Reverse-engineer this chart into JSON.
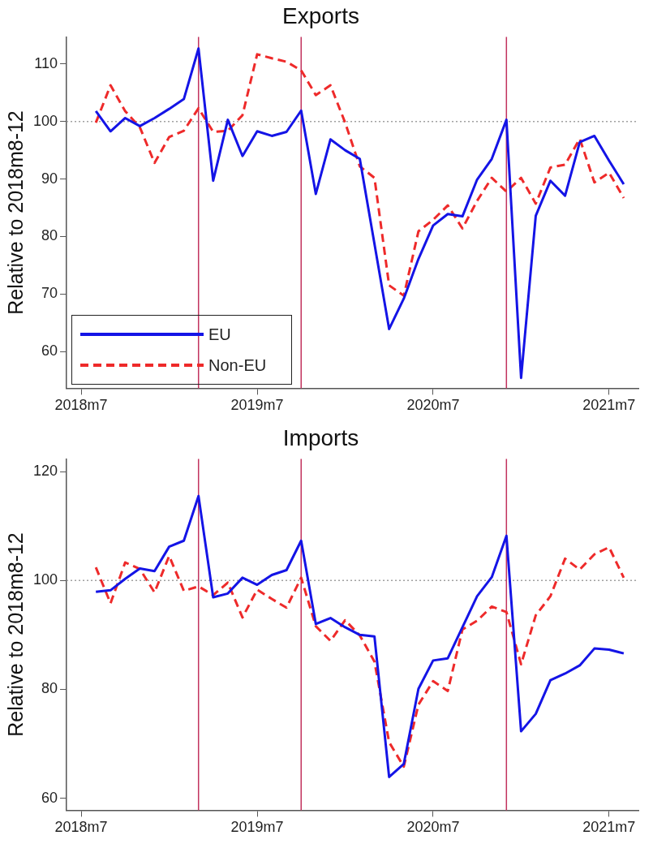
{
  "chart_data": [
    {
      "type": "line",
      "title": "Exports",
      "ylabel": "Relative to 2018m8-12",
      "x": [
        "2018-08",
        "2018-09",
        "2018-10",
        "2018-11",
        "2018-12",
        "2019-01",
        "2019-02",
        "2019-03",
        "2019-04",
        "2019-05",
        "2019-06",
        "2019-07",
        "2019-08",
        "2019-09",
        "2019-10",
        "2019-11",
        "2019-12",
        "2020-01",
        "2020-02",
        "2020-03",
        "2020-04",
        "2020-05",
        "2020-06",
        "2020-07",
        "2020-08",
        "2020-09",
        "2020-10",
        "2020-11",
        "2020-12",
        "2021-01",
        "2021-02",
        "2021-03",
        "2021-04",
        "2021-05",
        "2021-06",
        "2021-07",
        "2021-08"
      ],
      "series": [
        {
          "name": "EU",
          "color": "#1414e6",
          "line_style": "solid",
          "values": [
            101.8,
            98.3,
            100.6,
            99.2,
            100.6,
            102.2,
            103.9,
            112.7,
            89.7,
            100.3,
            94.0,
            98.3,
            97.5,
            98.2,
            101.9,
            87.4,
            96.9,
            95.0,
            93.5,
            78.7,
            63.9,
            69.2,
            76.1,
            81.9,
            83.9,
            83.5,
            89.9,
            93.5,
            100.3,
            55.4,
            83.6,
            89.7,
            87.1,
            96.4,
            97.5,
            93.2,
            89.1
          ]
        },
        {
          "name": "Non-EU",
          "color": "#ee2a2a",
          "line_style": "dashed",
          "values": [
            99.8,
            106.3,
            101.8,
            99.0,
            92.8,
            97.3,
            98.4,
            102.3,
            98.2,
            98.4,
            101.1,
            111.7,
            111.0,
            110.4,
            108.9,
            104.6,
            106.3,
            99.8,
            92.2,
            90.2,
            71.5,
            69.7,
            80.9,
            82.9,
            85.4,
            81.4,
            86.2,
            90.2,
            87.8,
            90.2,
            85.7,
            92.0,
            92.5,
            97.0,
            89.4,
            91.1,
            86.7
          ]
        }
      ],
      "xlim": [
        "2018-06",
        "2021-09"
      ],
      "xticks": [
        {
          "value": "2018-07",
          "label": "2018m7"
        },
        {
          "value": "2019-07",
          "label": "2019m7"
        },
        {
          "value": "2020-07",
          "label": "2020m7"
        },
        {
          "value": "2021-07",
          "label": "2021m7"
        }
      ],
      "ylim": [
        53.6,
        114.7
      ],
      "yticks": [
        60,
        70,
        80,
        90,
        100,
        110
      ],
      "ref_lines": [
        {
          "axis": "y",
          "value": 100,
          "color": "#a0a0a0",
          "line_style": "dotted"
        },
        {
          "axis": "x",
          "value": "2019-03",
          "color": "#c2335e"
        },
        {
          "axis": "x",
          "value": "2019-10",
          "color": "#c2335e"
        },
        {
          "axis": "x",
          "value": "2020-12",
          "color": "#c2335e"
        }
      ],
      "legend": "bottom left"
    },
    {
      "type": "line",
      "title": "Imports",
      "ylabel": "Relative to 2018m8-12",
      "x": [
        "2018-08",
        "2018-09",
        "2018-10",
        "2018-11",
        "2018-12",
        "2019-01",
        "2019-02",
        "2019-03",
        "2019-04",
        "2019-05",
        "2019-06",
        "2019-07",
        "2019-08",
        "2019-09",
        "2019-10",
        "2019-11",
        "2019-12",
        "2020-01",
        "2020-02",
        "2020-03",
        "2020-04",
        "2020-05",
        "2020-06",
        "2020-07",
        "2020-08",
        "2020-09",
        "2020-10",
        "2020-11",
        "2020-12",
        "2021-01",
        "2021-02",
        "2021-03",
        "2021-04",
        "2021-05",
        "2021-06",
        "2021-07",
        "2021-08"
      ],
      "series": [
        {
          "color": "#1414e6",
          "line_style": "solid",
          "values": [
            97.9,
            98.2,
            100.3,
            102.2,
            101.7,
            106.2,
            107.3,
            115.5,
            96.9,
            97.6,
            100.5,
            99.2,
            101.0,
            101.9,
            107.3,
            92.0,
            93.1,
            91.4,
            90.0,
            89.7,
            63.9,
            66.3,
            80.1,
            85.3,
            85.7,
            91.4,
            97.1,
            100.6,
            108.2,
            72.3,
            75.5,
            81.7,
            82.9,
            84.4,
            87.5,
            87.3,
            86.6
          ]
        },
        {
          "color": "#ee2a2a",
          "line_style": "dashed",
          "values": [
            102.4,
            95.8,
            103.3,
            102.1,
            97.8,
            104.5,
            98.1,
            98.9,
            97.3,
            99.6,
            93.2,
            98.3,
            96.6,
            95.0,
            100.5,
            91.6,
            88.9,
            92.7,
            89.9,
            85.1,
            70.3,
            65.8,
            77.2,
            81.5,
            79.7,
            91.0,
            92.6,
            95.2,
            94.2,
            84.6,
            93.6,
            97.1,
            104.0,
            102.0,
            104.8,
            106.1,
            100.5
          ]
        }
      ],
      "xlim": [
        "2018-06",
        "2021-09"
      ],
      "xticks": [
        {
          "value": "2018-07",
          "label": "2018m7"
        },
        {
          "value": "2019-07",
          "label": "2019m7"
        },
        {
          "value": "2020-07",
          "label": "2020m7"
        },
        {
          "value": "2021-07",
          "label": "2021m7"
        }
      ],
      "ylim": [
        57.8,
        122.3
      ],
      "yticks": [
        60,
        80,
        100,
        120
      ],
      "ref_lines": [
        {
          "axis": "y",
          "value": 100,
          "color": "#a0a0a0",
          "line_style": "dotted"
        },
        {
          "axis": "x",
          "value": "2019-03",
          "color": "#c2335e"
        },
        {
          "axis": "x",
          "value": "2019-10",
          "color": "#c2335e"
        },
        {
          "axis": "x",
          "value": "2020-12",
          "color": "#c2335e"
        }
      ]
    }
  ]
}
